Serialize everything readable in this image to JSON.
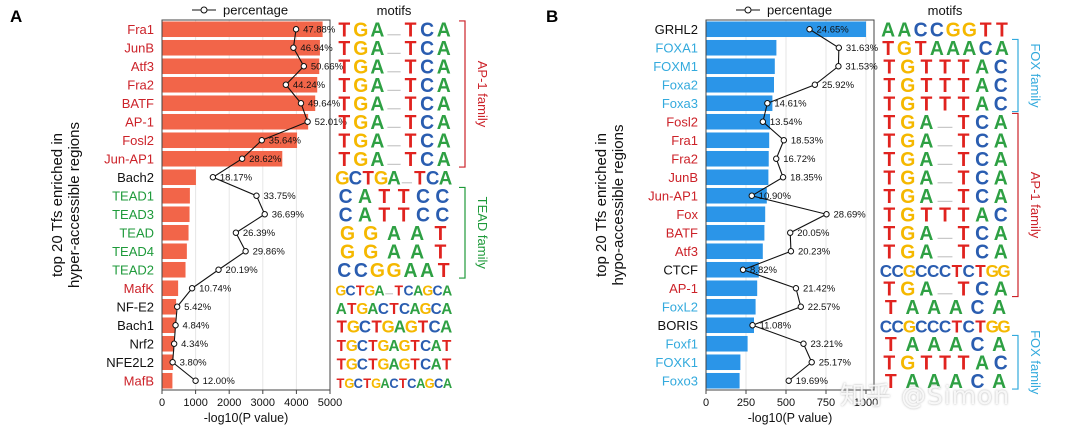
{
  "colors": {
    "ap1": "#cc2229",
    "tead": "#1e9a3a",
    "fox": "#33aadd",
    "other": "#111111",
    "bar_a": "#f26549",
    "bar_b": "#2b95e8",
    "motif_A": "#2ea043",
    "motif_C": "#2a5db0",
    "motif_G": "#f5b800",
    "motif_T": "#e0231f"
  },
  "watermark": "知乎 @Simon",
  "chart_data": [
    {
      "panel": "A",
      "type": "bar",
      "orientation": "horizontal",
      "legend": "percentage",
      "motifs_title": "motifs",
      "ylabel_lines": [
        "top 20 Tfs enriched in",
        "hyper-accessible regions"
      ],
      "xlabel": "-log10(P value)",
      "xlim": [
        0,
        5000
      ],
      "xticks": [
        0,
        1000,
        2000,
        3000,
        4000,
        5000
      ],
      "grid": true,
      "percentage_scale_max": 60,
      "categories": [
        "Fra1",
        "JunB",
        "Atf3",
        "Fra2",
        "BATF",
        "AP-1",
        "Fosl2",
        "Jun-AP1",
        "Bach2",
        "TEAD1",
        "TEAD3",
        "TEAD",
        "TEAD4",
        "TEAD2",
        "MafK",
        "NF-E2",
        "Bach1",
        "Nrf2",
        "NFE2L2",
        "MafB"
      ],
      "groups": [
        "ap1",
        "ap1",
        "ap1",
        "ap1",
        "ap1",
        "ap1",
        "ap1",
        "ap1",
        "other",
        "tead",
        "tead",
        "tead",
        "tead",
        "tead",
        "ap1",
        "other",
        "other",
        "other",
        "other",
        "ap1"
      ],
      "values": [
        4780,
        4700,
        4680,
        4620,
        4560,
        4350,
        4020,
        3580,
        1010,
        830,
        820,
        790,
        740,
        700,
        480,
        420,
        400,
        360,
        330,
        310
      ],
      "percentages": [
        47.88,
        46.94,
        50.66,
        44.24,
        49.64,
        52.01,
        35.64,
        28.62,
        18.17,
        33.75,
        36.69,
        26.39,
        29.86,
        20.19,
        10.74,
        5.42,
        4.84,
        4.34,
        3.8,
        12.0
      ],
      "percent_labels": [
        "47.88%",
        "46.94%",
        "50.66%",
        "44.24%",
        "49.64%",
        "52.01%",
        "35.64%",
        "28.62%",
        "18.17%",
        "33.75%",
        "36.69%",
        "26.39%",
        "29.86%",
        "20.19%",
        "10.74%",
        "5.42%",
        "4.84%",
        "4.34%",
        "3.80%",
        "12.00%"
      ],
      "motifs": [
        "TGA_TCA",
        "TGA_TCA",
        "TGA_TCA",
        "TGA_TCA",
        "TGA_TCA",
        "TGA_TCA",
        "TGA_TCA",
        "TGA_TCA",
        "GCTGA_TCA",
        "CATTCC",
        "CATTCC",
        "GGAAT",
        "GGAAT",
        "CCGGAAT",
        "GCTGA_TCAGCA",
        "ATGACTCAGCA",
        "TGCTGAGTCA",
        "TGCTGAGTCAT",
        "TGCTGAGTCAT",
        "TGCTGACTCAGCA"
      ],
      "families": [
        {
          "label": "AP-1 family",
          "from": 0,
          "to": 7,
          "group": "ap1"
        },
        {
          "label": "TEAD family",
          "from": 9,
          "to": 13,
          "group": "tead"
        }
      ]
    },
    {
      "panel": "B",
      "type": "bar",
      "orientation": "horizontal",
      "legend": "percentage",
      "motifs_title": "motifs",
      "ylabel_lines": [
        "top 20 Tfs enriched in",
        "hypo-accessible regions"
      ],
      "xlabel": "-log10(P value)",
      "xlim": [
        0,
        1050
      ],
      "xticks": [
        0,
        250,
        500,
        750,
        1000
      ],
      "grid": true,
      "percentage_scale_max": 40,
      "categories": [
        "GRHL2",
        "FOXA1",
        "FOXM1",
        "Foxa2",
        "Foxa3",
        "Fosl2",
        "Fra1",
        "Fra2",
        "JunB",
        "Jun-AP1",
        "Fox",
        "BATF",
        "Atf3",
        "CTCF",
        "AP-1",
        "FoxL2",
        "BORIS",
        "Foxf1",
        "FOXK1",
        "Foxo3"
      ],
      "groups": [
        "other",
        "fox",
        "fox",
        "fox",
        "fox",
        "ap1",
        "ap1",
        "ap1",
        "ap1",
        "ap1",
        "ap1",
        "ap1",
        "ap1",
        "other",
        "ap1",
        "fox",
        "other",
        "fox",
        "fox",
        "fox"
      ],
      "values": [
        1000,
        440,
        430,
        425,
        415,
        400,
        395,
        392,
        390,
        380,
        370,
        365,
        355,
        330,
        320,
        310,
        300,
        260,
        215,
        210
      ],
      "percentages": [
        24.65,
        31.63,
        31.53,
        25.92,
        14.61,
        13.54,
        18.53,
        16.72,
        18.35,
        10.9,
        28.69,
        20.05,
        20.23,
        8.82,
        21.42,
        22.57,
        11.08,
        23.21,
        25.17,
        19.69
      ],
      "percent_labels": [
        "24.65%",
        "31.63%",
        "31.53%",
        "25.92%",
        "14.61%",
        "13.54%",
        "18.53%",
        "16.72%",
        "18.35%",
        "10.90%",
        "28.69%",
        "20.05%",
        "20.23%",
        "8.82%",
        "21.42%",
        "22.57%",
        "11.08%",
        "23.21%",
        "25.17%",
        "19.69%"
      ],
      "motifs": [
        "AACCGGTT",
        "TGTAAACA",
        "TGTTTAC",
        "TGTTTAC",
        "TGTTTAC",
        "TGA_TCA",
        "TGA_TCA",
        "TGA_TCA",
        "TGA_TCA",
        "TGA_TCA",
        "TGTTTAC",
        "TGA_TCA",
        "TGA_TCA",
        "CCGCCCTCTGG",
        "TGA_TCA",
        "TAAACA",
        "CCGCCCTCTGG",
        "TAAACA",
        "TGTTTAC",
        "TAAACA"
      ],
      "families": [
        {
          "label": "FOX family",
          "from": 1,
          "to": 4,
          "group": "fox"
        },
        {
          "label": "AP-1 family",
          "from": 5,
          "to": 14,
          "group": "ap1"
        },
        {
          "label": "FOX family",
          "from": 17,
          "to": 19,
          "group": "fox"
        }
      ]
    }
  ]
}
